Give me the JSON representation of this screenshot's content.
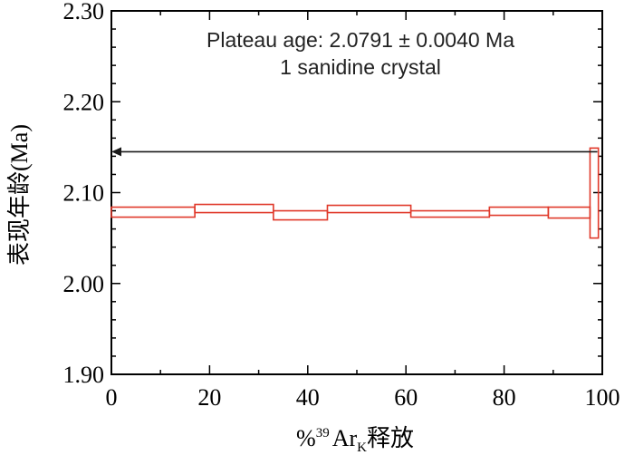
{
  "chart_data": {
    "type": "step",
    "title": "",
    "annotation_lines": [
      "Plateau age: 2.0791 ± 0.0040 Ma",
      "1 sanidine crystal"
    ],
    "xlabel": {
      "prefix": "%",
      "superscript": "39",
      "main": "Ar",
      "subscript": "K",
      "suffix": "释放"
    },
    "ylabel": "表现年龄(Ma)",
    "xlim": [
      0,
      100
    ],
    "ylim": [
      1.9,
      2.3
    ],
    "x_ticks": [
      0,
      20,
      40,
      60,
      80,
      100
    ],
    "x_tick_labels": [
      "0",
      "20",
      "40",
      "60",
      "80",
      "100"
    ],
    "y_ticks": [
      1.9,
      2.0,
      2.1,
      2.2,
      2.3
    ],
    "y_tick_labels": [
      "1.90",
      "2.00",
      "2.10",
      "2.20",
      "2.30"
    ],
    "grid": false,
    "plateau": {
      "from_pct": 0,
      "to_pct": 99,
      "y": 2.145,
      "arrow": "left"
    },
    "steps": [
      {
        "x0": 0,
        "x1": 17,
        "y_low": 2.073,
        "y_high": 2.084
      },
      {
        "x0": 17,
        "x1": 33,
        "y_low": 2.078,
        "y_high": 2.087
      },
      {
        "x0": 33,
        "x1": 44,
        "y_low": 2.07,
        "y_high": 2.08
      },
      {
        "x0": 44,
        "x1": 61,
        "y_low": 2.078,
        "y_high": 2.086
      },
      {
        "x0": 61,
        "x1": 77,
        "y_low": 2.073,
        "y_high": 2.08
      },
      {
        "x0": 77,
        "x1": 89,
        "y_low": 2.075,
        "y_high": 2.084
      },
      {
        "x0": 89,
        "x1": 97.5,
        "y_low": 2.072,
        "y_high": 2.084
      },
      {
        "x0": 97.5,
        "x1": 99.2,
        "y_low": 2.05,
        "y_high": 2.149
      }
    ],
    "colors": {
      "steps": "#e0392a",
      "plateau": "#1a1a1a",
      "axis": "#000000"
    }
  }
}
